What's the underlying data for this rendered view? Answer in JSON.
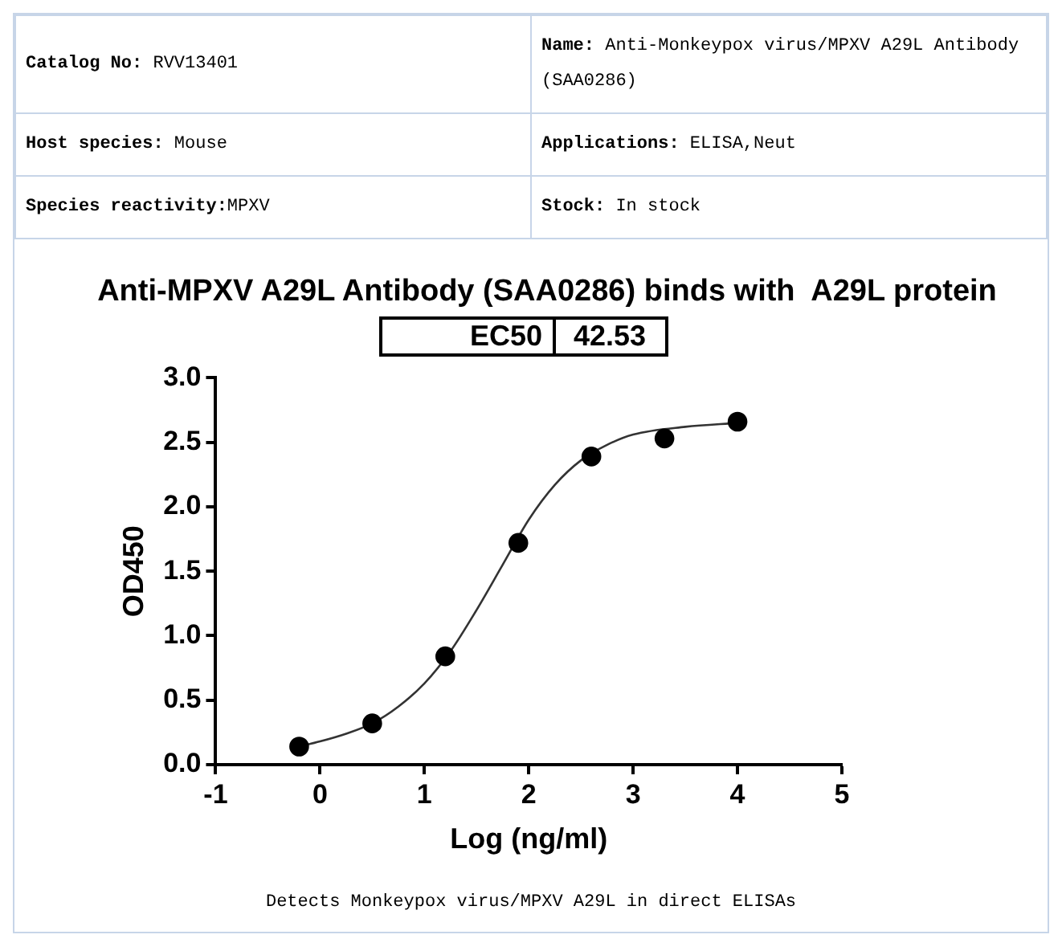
{
  "chart_data": {
    "type": "scatter",
    "title": "Anti-MPXV A29L Antibody (SAA0286) binds with  A29L protein",
    "xlabel": "Log (ng/ml)",
    "ylabel": "OD450",
    "annotations": [
      "Catalog No: RVV13401",
      "Name: Anti-Monkeypox virus/MPXV A29L Antibody (SAA0286)",
      "Host species: Mouse",
      "Applications: ELISA,Neut",
      "Species reactivity:MPXV",
      "Stock: In stock",
      "EC50",
      "42.53",
      "Detects Monkeypox virus/MPXV A29L in direct ELISAs"
    ],
    "x": [
      -0.2,
      0.5,
      1.2,
      1.9,
      2.6,
      3.3,
      4.0
    ],
    "series": [
      {
        "color": "#000000",
        "marker": "circle",
        "values": [
          0.14,
          0.32,
          0.84,
          1.72,
          2.39,
          2.53,
          2.66
        ]
      },
      {
        "type": "line",
        "color": "#333333",
        "marker": "none",
        "x": [
          -0.2,
          0,
          0.25,
          0.5,
          0.75,
          1.0,
          1.25,
          1.5,
          1.75,
          2.0,
          2.25,
          2.5,
          2.75,
          3.0,
          3.5,
          4.0
        ],
        "values": [
          0.14,
          0.18,
          0.24,
          0.32,
          0.45,
          0.63,
          0.88,
          1.2,
          1.55,
          1.9,
          2.17,
          2.36,
          2.48,
          2.56,
          2.62,
          2.65
        ]
      }
    ],
    "xlim": [
      -1,
      5
    ],
    "xticks": [
      -1,
      0,
      1,
      2,
      3,
      4,
      5
    ],
    "ylim": [
      0,
      3
    ],
    "yticks": [
      {
        "value": 0,
        "label": "0.0"
      },
      {
        "value": 0.5,
        "label": "0.5"
      },
      {
        "value": 1,
        "label": "1.0"
      },
      {
        "value": 1.5,
        "label": "1.5"
      },
      {
        "value": 2,
        "label": "2.0"
      },
      {
        "value": 2.5,
        "label": "2.5"
      },
      {
        "value": 3,
        "label": "3.0"
      }
    ],
    "legend": false
  }
}
